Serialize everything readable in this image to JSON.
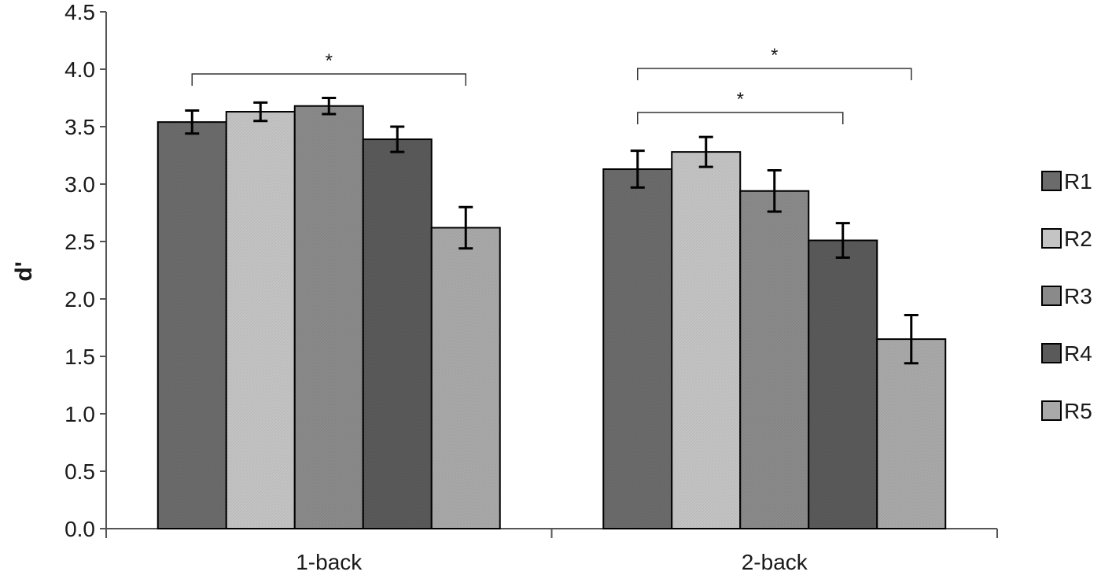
{
  "chart_data": {
    "type": "bar",
    "ylabel": "d'",
    "xlabel": "",
    "ylim": [
      0,
      4.5
    ],
    "yticks": [
      "0.0",
      "0.5",
      "1.0",
      "1.5",
      "2.0",
      "2.5",
      "3.0",
      "3.5",
      "4.0",
      "4.5"
    ],
    "categories": [
      "1-back",
      "2-back"
    ],
    "series": [
      {
        "name": "R1",
        "values": [
          3.54,
          3.13
        ],
        "errors": [
          0.1,
          0.16
        ],
        "color": "#6b6b6b"
      },
      {
        "name": "R2",
        "values": [
          3.63,
          3.28
        ],
        "errors": [
          0.08,
          0.13
        ],
        "color": "#c4c4c4"
      },
      {
        "name": "R3",
        "values": [
          3.68,
          2.94
        ],
        "errors": [
          0.07,
          0.18
        ],
        "color": "#8a8a8a"
      },
      {
        "name": "R4",
        "values": [
          3.39,
          2.51
        ],
        "errors": [
          0.11,
          0.15
        ],
        "color": "#5a5a5a"
      },
      {
        "name": "R5",
        "values": [
          2.62,
          1.65
        ],
        "errors": [
          0.18,
          0.21
        ],
        "color": "#a9a9a9"
      }
    ],
    "legend_position": "right",
    "grid": false,
    "significance": [
      {
        "category": "1-back",
        "from": "R1",
        "to": "R5",
        "label": "*"
      },
      {
        "category": "2-back",
        "from": "R1",
        "to": "R4",
        "label": "*"
      },
      {
        "category": "2-back",
        "from": "R1",
        "to": "R5",
        "label": "*"
      }
    ]
  }
}
